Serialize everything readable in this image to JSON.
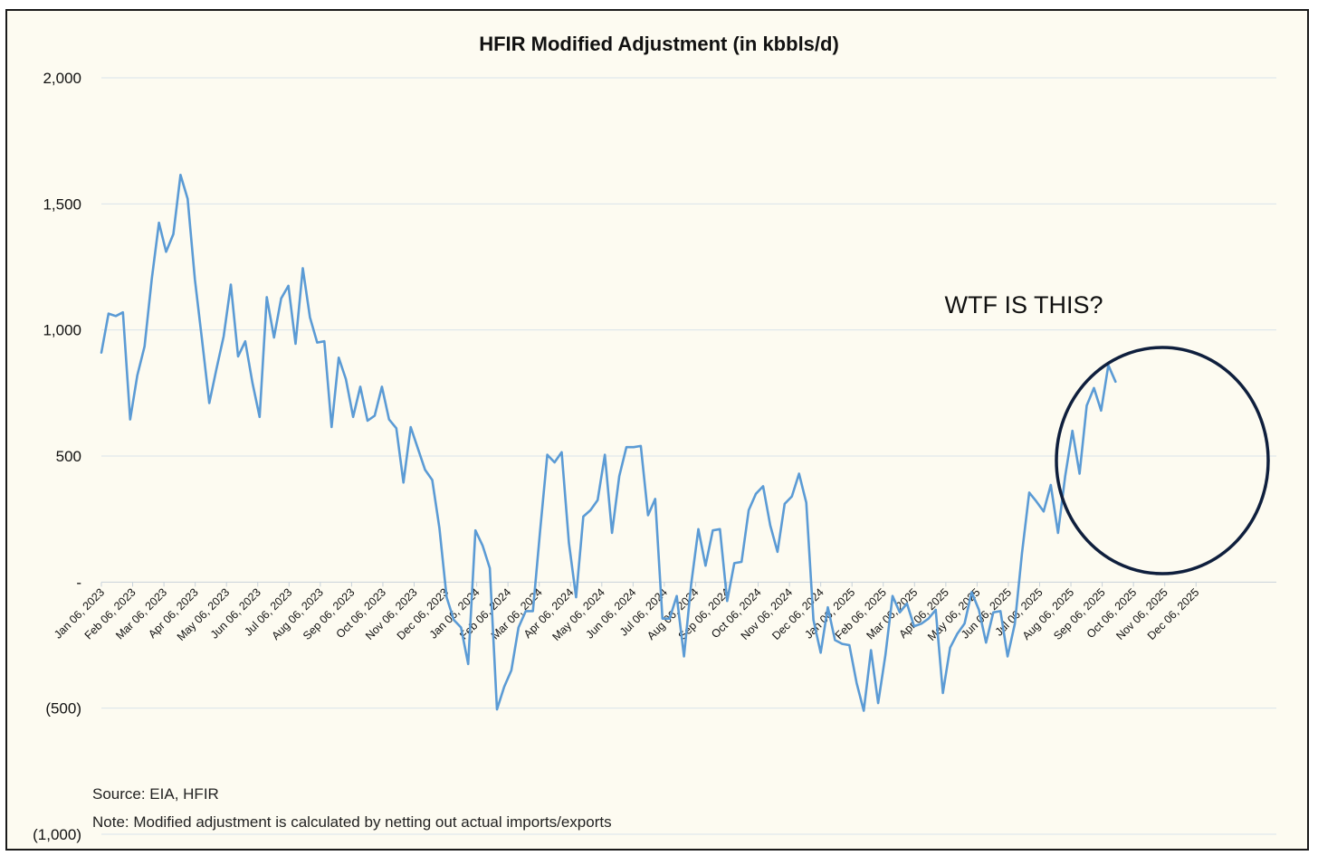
{
  "chart_data": {
    "type": "line",
    "title": "HFIR Modified Adjustment (in kbbls/d)",
    "ylim": [
      -1000,
      2000
    ],
    "yticks": [
      {
        "value": 2000,
        "label": "2,000"
      },
      {
        "value": 1500,
        "label": "1,500"
      },
      {
        "value": 1000,
        "label": "1,000"
      },
      {
        "value": 500,
        "label": "500"
      },
      {
        "value": 0,
        "label": "-"
      },
      {
        "value": -500,
        "label": "(500)"
      },
      {
        "value": -1000,
        "label": "(1,000)"
      }
    ],
    "xticks": [
      "Jan 06, 2023",
      "Feb 06, 2023",
      "Mar 06, 2023",
      "Apr 06, 2023",
      "May 06, 2023",
      "Jun 06, 2023",
      "Jul 06, 2023",
      "Aug 06, 2023",
      "Sep 06, 2023",
      "Oct 06, 2023",
      "Nov 06, 2023",
      "Dec 06, 2023",
      "Jan 06, 2024",
      "Feb 06, 2024",
      "Mar 06, 2024",
      "Apr 06, 2024",
      "May 06, 2024",
      "Jun 06, 2024",
      "Jul 06, 2024",
      "Aug 06, 2024",
      "Sep 06, 2024",
      "Oct 06, 2024",
      "Nov 06, 2024",
      "Dec 06, 2024",
      "Jan 06, 2025",
      "Feb 06, 2025",
      "Mar 06, 2025",
      "Apr 06, 2025",
      "May 06, 2025",
      "Jun 06, 2025",
      "Jul 06, 2025",
      "Aug 06, 2025",
      "Sep 06, 2025",
      "Oct 06, 2025",
      "Nov 06, 2025",
      "Dec 06, 2025"
    ],
    "series": [
      {
        "name": "HFIR Modified Adjustment",
        "color": "#5b9bd5",
        "values": [
          910,
          1065,
          1055,
          1070,
          645,
          820,
          935,
          1200,
          1425,
          1310,
          1380,
          1615,
          1520,
          1200,
          960,
          710,
          845,
          975,
          1180,
          895,
          955,
          790,
          655,
          1130,
          970,
          1125,
          1175,
          945,
          1245,
          1050,
          950,
          955,
          615,
          890,
          805,
          655,
          775,
          640,
          660,
          775,
          645,
          610,
          395,
          615,
          530,
          445,
          405,
          215,
          -60,
          -150,
          -180,
          -325,
          205,
          145,
          55,
          -505,
          -415,
          -350,
          -180,
          -115,
          -115,
          205,
          505,
          475,
          515,
          155,
          -60,
          260,
          285,
          325,
          505,
          195,
          420,
          535,
          535,
          540,
          265,
          330,
          -145,
          -145,
          -55,
          -295,
          -10,
          210,
          65,
          205,
          210,
          -75,
          75,
          80,
          285,
          350,
          380,
          225,
          120,
          310,
          340,
          430,
          315,
          -150,
          -280,
          -100,
          -230,
          -245,
          -250,
          -400,
          -510,
          -270,
          -480,
          -290,
          -55,
          -120,
          -85,
          -175,
          -165,
          -145,
          -110,
          -440,
          -260,
          -205,
          -165,
          -40,
          -110,
          -240,
          -120,
          -115,
          -295,
          -165,
          115,
          355,
          320,
          280,
          385,
          195,
          420,
          600,
          430,
          700,
          770,
          680,
          860,
          795
        ]
      }
    ],
    "annotation": "WTF IS THIS?",
    "source_text": "Source: EIA, HFIR",
    "note_text": "Note: Modified adjustment is calculated by netting out actual imports/exports"
  },
  "colors": {
    "background": "#fdfbf1",
    "line": "#5b9bd5",
    "gridline": "#d9e3ea",
    "circle": "#0f1f3d"
  }
}
